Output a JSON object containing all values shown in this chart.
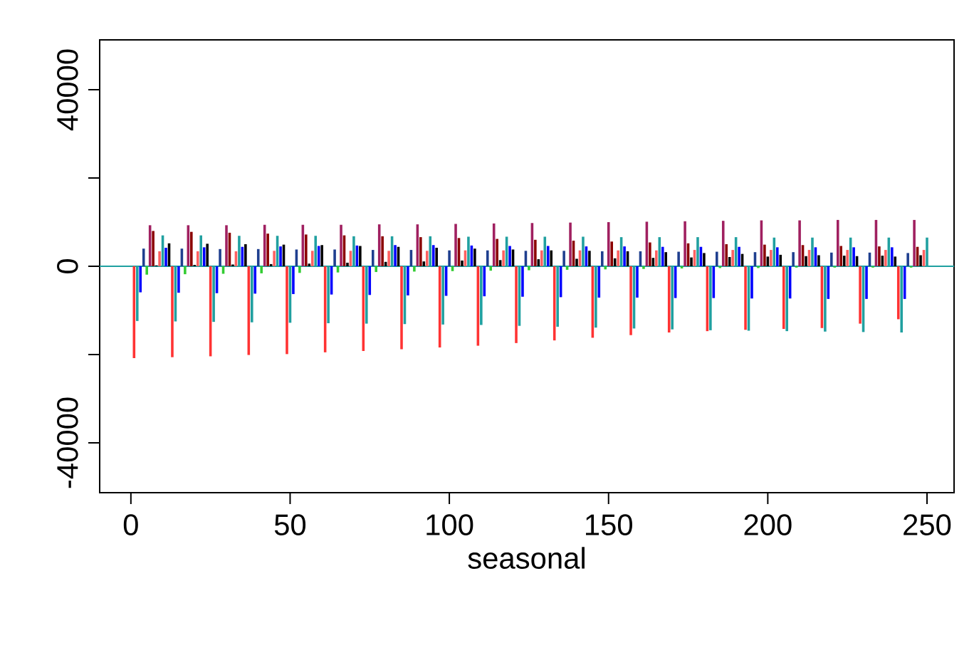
{
  "chart_data": {
    "type": "bar",
    "xlabel": "seasonal",
    "xlim": [
      -9.8,
      258.5
    ],
    "ylim": [
      -51300,
      51300
    ],
    "xticks": [
      0,
      50,
      100,
      150,
      200,
      250
    ],
    "yticks": [
      {
        "value": -40000,
        "label": "-40000"
      },
      {
        "value": -20000,
        "label": null
      },
      0,
      {
        "value": 20000,
        "label": null
      },
      40000
    ],
    "ref_lines": [
      {
        "axis": "y",
        "value": 0,
        "color": "#20a0a0"
      }
    ],
    "series": [
      {
        "color": "#ff3333",
        "x": [
          1,
          13,
          25,
          37,
          49,
          61,
          73,
          85,
          97,
          109,
          121,
          133,
          145,
          157,
          169,
          181,
          193,
          205,
          217,
          229,
          241
        ],
        "values": [
          -20800,
          -20600,
          -20400,
          -20100,
          -19900,
          -19500,
          -19200,
          -18800,
          -18400,
          -18000,
          -17400,
          -16800,
          -16200,
          -15600,
          -15000,
          -14700,
          -14400,
          -14200,
          -14000,
          -13000,
          -12000
        ]
      },
      {
        "color": "#20a0a0",
        "x": [
          2,
          14,
          26,
          38,
          50,
          62,
          74,
          86,
          98,
          110,
          122,
          134,
          146,
          158,
          170,
          182,
          194,
          206,
          218,
          230,
          242
        ],
        "values": [
          -12400,
          -12500,
          -12600,
          -12700,
          -12800,
          -12900,
          -13000,
          -13100,
          -13200,
          -13300,
          -13500,
          -13700,
          -13900,
          -14100,
          -14300,
          -14500,
          -14600,
          -14700,
          -14800,
          -14900,
          -15000
        ]
      },
      {
        "color": "#0000ff",
        "x": [
          3,
          15,
          27,
          39,
          51,
          63,
          75,
          87,
          99,
          111,
          123,
          135,
          147,
          159,
          171,
          183,
          195,
          207,
          219,
          231,
          243
        ],
        "values": [
          -5900,
          -6000,
          -6100,
          -6200,
          -6300,
          -6400,
          -6500,
          -6600,
          -6700,
          -6800,
          -6900,
          -7000,
          -7100,
          -7100,
          -7200,
          -7200,
          -7300,
          -7300,
          -7400,
          -7400,
          -7400
        ]
      },
      {
        "color": "#1f3f8f",
        "x": [
          4,
          16,
          28,
          40,
          52,
          64,
          76,
          88,
          100,
          112,
          124,
          136,
          148,
          160,
          172,
          184,
          196,
          208,
          220,
          232,
          244
        ],
        "values": [
          4000,
          4000,
          3900,
          3900,
          3800,
          3800,
          3700,
          3700,
          3600,
          3600,
          3500,
          3500,
          3400,
          3400,
          3300,
          3300,
          3200,
          3200,
          3100,
          3100,
          3000
        ]
      },
      {
        "color": "#33cc33",
        "x": [
          5,
          17,
          29,
          41,
          53,
          65,
          77,
          89,
          101,
          113,
          125,
          137,
          149,
          161,
          173,
          185,
          197,
          209,
          221,
          233,
          245
        ],
        "values": [
          -1900,
          -1800,
          -1700,
          -1600,
          -1500,
          -1400,
          -1300,
          -1200,
          -1100,
          -1000,
          -900,
          -800,
          -700,
          -600,
          -500,
          -400,
          -400,
          -300,
          -300,
          -300,
          -300
        ]
      },
      {
        "color": "#a02060",
        "x": [
          6,
          18,
          30,
          42,
          54,
          66,
          78,
          90,
          102,
          114,
          126,
          138,
          150,
          162,
          174,
          186,
          198,
          210,
          222,
          234,
          246
        ],
        "values": [
          9300,
          9300,
          9300,
          9400,
          9400,
          9400,
          9500,
          9500,
          9600,
          9700,
          9800,
          9900,
          10000,
          10100,
          10200,
          10300,
          10400,
          10400,
          10500,
          10500,
          10500
        ]
      },
      {
        "color": "#8b0000",
        "x": [
          7,
          19,
          31,
          43,
          55,
          67,
          79,
          91,
          103,
          115,
          127,
          139,
          151,
          163,
          175,
          187,
          199,
          211,
          223,
          235,
          247
        ],
        "values": [
          8000,
          7800,
          7600,
          7400,
          7200,
          7000,
          6800,
          6600,
          6400,
          6200,
          6000,
          5800,
          5600,
          5400,
          5200,
          5000,
          4900,
          4800,
          4600,
          4500,
          4400
        ]
      },
      {
        "color": "#000000",
        "x": [
          8,
          20,
          32,
          44,
          56,
          68,
          80,
          92,
          104,
          116,
          128,
          140,
          152,
          164,
          176,
          188,
          200,
          212,
          224,
          236,
          248
        ],
        "values": [
          200,
          300,
          400,
          500,
          600,
          800,
          1000,
          1100,
          1300,
          1400,
          1600,
          1700,
          1800,
          1900,
          2000,
          2100,
          2200,
          2300,
          2400,
          2400,
          2500
        ]
      },
      {
        "color": "#ff6060",
        "x": [
          9,
          21,
          33,
          45,
          57,
          69,
          81,
          93,
          105,
          117,
          129,
          141,
          153,
          165,
          177,
          189,
          201,
          213,
          225,
          237,
          249
        ],
        "values": [
          3400,
          3400,
          3400,
          3500,
          3500,
          3500,
          3500,
          3500,
          3600,
          3600,
          3600,
          3600,
          3600,
          3600,
          3700,
          3700,
          3700,
          3700,
          3700,
          3700,
          3700
        ]
      },
      {
        "color": "#20a0a0",
        "x": [
          10,
          22,
          34,
          46,
          58,
          70,
          82,
          94,
          106,
          118,
          130,
          142,
          154,
          166,
          178,
          190,
          202,
          214,
          226,
          238,
          250
        ],
        "values": [
          7000,
          7000,
          6900,
          6900,
          6900,
          6800,
          6800,
          6800,
          6700,
          6700,
          6700,
          6700,
          6600,
          6600,
          6600,
          6600,
          6500,
          6500,
          6500,
          6500,
          6500
        ]
      },
      {
        "color": "#0000ff",
        "x": [
          11,
          23,
          35,
          47,
          59,
          71,
          83,
          95,
          107,
          119,
          131,
          143,
          155,
          167,
          179,
          191,
          203,
          215,
          227,
          239
        ],
        "values": [
          4200,
          4300,
          4400,
          4500,
          4600,
          4700,
          4800,
          4800,
          4700,
          4600,
          4600,
          4500,
          4500,
          4400,
          4400,
          4400,
          4300,
          4300,
          4300,
          4300
        ]
      },
      {
        "color": "#000000",
        "x": [
          12,
          24,
          36,
          48,
          60,
          72,
          84,
          96,
          108,
          120,
          132,
          144,
          156,
          168,
          180,
          192,
          204,
          216,
          228,
          240
        ],
        "values": [
          5200,
          5100,
          5000,
          4900,
          4800,
          4600,
          4400,
          4200,
          4000,
          3800,
          3600,
          3500,
          3400,
          3200,
          3000,
          2800,
          2600,
          2500,
          2300,
          2200
        ]
      }
    ]
  }
}
